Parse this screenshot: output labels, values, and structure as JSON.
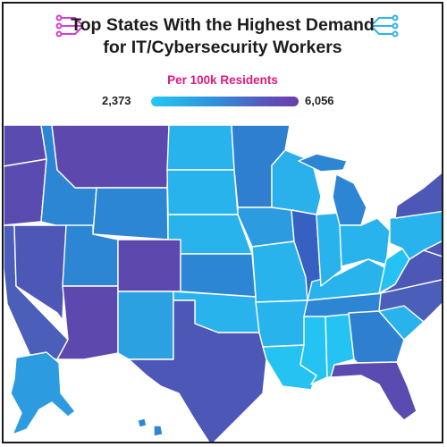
{
  "title_line1": "Top States With the Highest Demand",
  "title_line2": "for IT/Cybersecurity Workers",
  "legend": {
    "label": "Per 100k Residents",
    "min": "2,373",
    "max": "6,056"
  },
  "colors": {
    "low": "#25c6f2",
    "mid": "#2f8fd8",
    "high": "#6a3fa8",
    "title_accent": "#e0187f",
    "title_deco": "#d43fd0"
  }
}
